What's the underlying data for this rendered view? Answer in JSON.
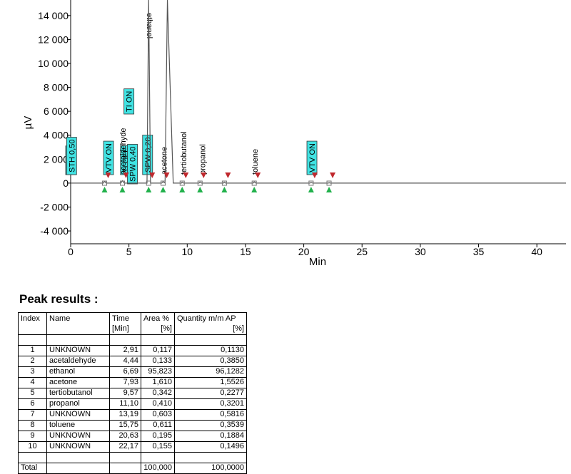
{
  "chart_data": {
    "type": "line",
    "x_label": "Min",
    "y_label": "µV",
    "xlim": [
      0,
      42.5
    ],
    "ylim": [
      -5070,
      15300
    ],
    "xticks": [
      0,
      5,
      10,
      15,
      20,
      25,
      30,
      35,
      40
    ],
    "yticks": [
      {
        "value": -4000,
        "label": "-4 000"
      },
      {
        "value": -2000,
        "label": "-2 000"
      },
      0,
      {
        "value": 2000,
        "label": "2 000"
      },
      {
        "value": 4000,
        "label": "4 000"
      },
      {
        "value": 6000,
        "label": "6 000"
      },
      {
        "value": 8000,
        "label": "8 000"
      },
      {
        "value": 10000,
        "label": "10 000"
      },
      {
        "value": 12000,
        "label": "12 000"
      },
      {
        "value": 14000,
        "label": "14 000"
      }
    ],
    "series": [
      {
        "color": "#555555",
        "x": [
          0,
          2.8,
          2.91,
          3.05,
          4.3,
          4.44,
          4.6,
          6.55,
          6.69,
          6.85,
          7.8,
          7.93,
          8.1,
          8.3,
          8.8,
          9.5,
          9.57,
          9.7,
          11.0,
          11.1,
          11.25,
          13.1,
          13.19,
          13.3,
          15.65,
          15.75,
          15.9,
          20.5,
          20.63,
          20.8,
          22.1,
          22.17,
          22.3,
          42.5
        ],
        "values": [
          0,
          0,
          150,
          0,
          0,
          200,
          0,
          0,
          15300,
          0,
          0,
          120,
          0,
          15300,
          0,
          0,
          80,
          0,
          0,
          90,
          0,
          0,
          80,
          0,
          0,
          100,
          0,
          0,
          40,
          0,
          0,
          30,
          0,
          0
        ]
      }
    ],
    "peak_times": [
      2.91,
      4.44,
      6.69,
      7.93,
      9.57,
      11.1,
      13.19,
      15.75,
      20.63,
      22.17
    ],
    "peak_labels": [
      {
        "x": 4.47,
        "text": "acetaldehyde"
      },
      {
        "x": 6.75,
        "text": "ethanol"
      },
      {
        "x": 8.0,
        "text": "acetone"
      },
      {
        "x": 9.67,
        "text": "tertiobutanol"
      },
      {
        "x": 11.3,
        "text": "propanol"
      },
      {
        "x": 15.8,
        "text": "toluene"
      }
    ],
    "events": [
      {
        "x": 0.0,
        "text": "SPW 0"
      },
      {
        "x": 0.08,
        "text": "STH 0,50"
      },
      {
        "x": 3.25,
        "text": "VTV ON"
      },
      {
        "x": 4.7,
        "text": "TLOFF"
      },
      {
        "x": 5.0,
        "text": "TI ON"
      },
      {
        "x": 5.3,
        "text": "SPW 0,40"
      },
      {
        "x": 6.6,
        "text": "SPW 0,20"
      },
      {
        "x": 20.7,
        "text": "VTV ON"
      }
    ]
  },
  "peak_results": {
    "title": "Peak results :",
    "header": [
      [
        "Index"
      ],
      [
        "Name"
      ],
      [
        "Time",
        "[Min]"
      ],
      [
        "Area %",
        "[%]"
      ],
      [
        "Quantity m/m AP",
        "[%]"
      ]
    ],
    "rows": [
      [
        "1",
        "UNKNOWN",
        "2,91",
        "0,117",
        "0,1130"
      ],
      [
        "2",
        "acetaldehyde",
        "4,44",
        "0,133",
        "0,3850"
      ],
      [
        "3",
        "ethanol",
        "6,69",
        "95,823",
        "96,1282"
      ],
      [
        "4",
        "acetone",
        "7,93",
        "1,610",
        "1,5526"
      ],
      [
        "5",
        "tertiobutanol",
        "9,57",
        "0,342",
        "0,2277"
      ],
      [
        "6",
        "propanol",
        "11,10",
        "0,410",
        "0,3201"
      ],
      [
        "7",
        "UNKNOWN",
        "13,19",
        "0,603",
        "0,5816"
      ],
      [
        "8",
        "toluene",
        "15,75",
        "0,611",
        "0,3539"
      ],
      [
        "9",
        "UNKNOWN",
        "20,63",
        "0,195",
        "0,1884"
      ],
      [
        "10",
        "UNKNOWN",
        "22,17",
        "0,155",
        "0,1496"
      ]
    ],
    "total": [
      "Total",
      "100,000",
      "100,0000"
    ]
  }
}
